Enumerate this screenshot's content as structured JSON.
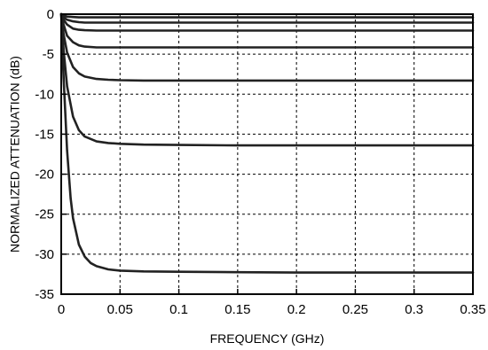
{
  "chart_data": {
    "type": "line",
    "title": "",
    "xlabel": "FREQUENCY (GHz)",
    "ylabel": "NORMALIZED ATTENUATION (dB)",
    "xlim": [
      0,
      0.35
    ],
    "ylim": [
      -35,
      0
    ],
    "x_ticks": [
      0,
      0.05,
      0.1,
      0.15,
      0.2,
      0.25,
      0.3,
      0.35
    ],
    "x_tick_labels": [
      "0",
      "0.05",
      "0.1",
      "0.15",
      "0.2",
      "0.25",
      "0.3",
      "0.35"
    ],
    "y_ticks": [
      0,
      -5,
      -10,
      -15,
      -20,
      -25,
      -30,
      -35
    ],
    "y_tick_labels": [
      "0",
      "-5",
      "-10",
      "-15",
      "-20",
      "-25",
      "-30",
      "-35"
    ],
    "grid": true,
    "line_color": "#222222",
    "series": [
      {
        "x": [
          0,
          0.002,
          0.005,
          0.01,
          0.015,
          0.02,
          0.03,
          0.05,
          0.35
        ],
        "y": [
          0,
          -0.2,
          -0.3,
          -0.35,
          -0.4,
          -0.4,
          -0.4,
          -0.4,
          -0.4
        ]
      },
      {
        "x": [
          0,
          0.002,
          0.005,
          0.01,
          0.015,
          0.02,
          0.03,
          0.05,
          0.35
        ],
        "y": [
          0,
          -0.4,
          -0.7,
          -0.9,
          -1.0,
          -1.05,
          -1.05,
          -1.05,
          -1.05
        ]
      },
      {
        "x": [
          0,
          0.002,
          0.005,
          0.01,
          0.015,
          0.02,
          0.03,
          0.05,
          0.1,
          0.35
        ],
        "y": [
          0,
          -0.7,
          -1.3,
          -1.8,
          -1.95,
          -2.0,
          -2.05,
          -2.05,
          -2.05,
          -2.05
        ]
      },
      {
        "x": [
          0,
          0.002,
          0.005,
          0.01,
          0.015,
          0.02,
          0.03,
          0.05,
          0.1,
          0.35
        ],
        "y": [
          0,
          -1.3,
          -2.7,
          -3.5,
          -3.9,
          -4.05,
          -4.15,
          -4.15,
          -4.15,
          -4.15
        ]
      },
      {
        "x": [
          0,
          0.002,
          0.005,
          0.01,
          0.015,
          0.02,
          0.03,
          0.04,
          0.05,
          0.07,
          0.1,
          0.35
        ],
        "y": [
          0,
          -2.5,
          -4.8,
          -6.6,
          -7.4,
          -7.8,
          -8.1,
          -8.2,
          -8.25,
          -8.3,
          -8.3,
          -8.3
        ]
      },
      {
        "x": [
          0,
          0.002,
          0.005,
          0.01,
          0.015,
          0.02,
          0.03,
          0.04,
          0.05,
          0.07,
          0.1,
          0.15,
          0.35
        ],
        "y": [
          0,
          -4.5,
          -9.0,
          -12.8,
          -14.5,
          -15.3,
          -15.9,
          -16.1,
          -16.2,
          -16.3,
          -16.35,
          -16.4,
          -16.4
        ]
      },
      {
        "x": [
          0,
          0.002,
          0.005,
          0.008,
          0.01,
          0.015,
          0.02,
          0.025,
          0.03,
          0.04,
          0.05,
          0.07,
          0.1,
          0.15,
          0.2,
          0.35
        ],
        "y": [
          0,
          -8.0,
          -17.0,
          -23.0,
          -25.5,
          -28.8,
          -30.3,
          -31.1,
          -31.5,
          -31.9,
          -32.05,
          -32.15,
          -32.2,
          -32.25,
          -32.3,
          -32.3
        ]
      }
    ]
  }
}
